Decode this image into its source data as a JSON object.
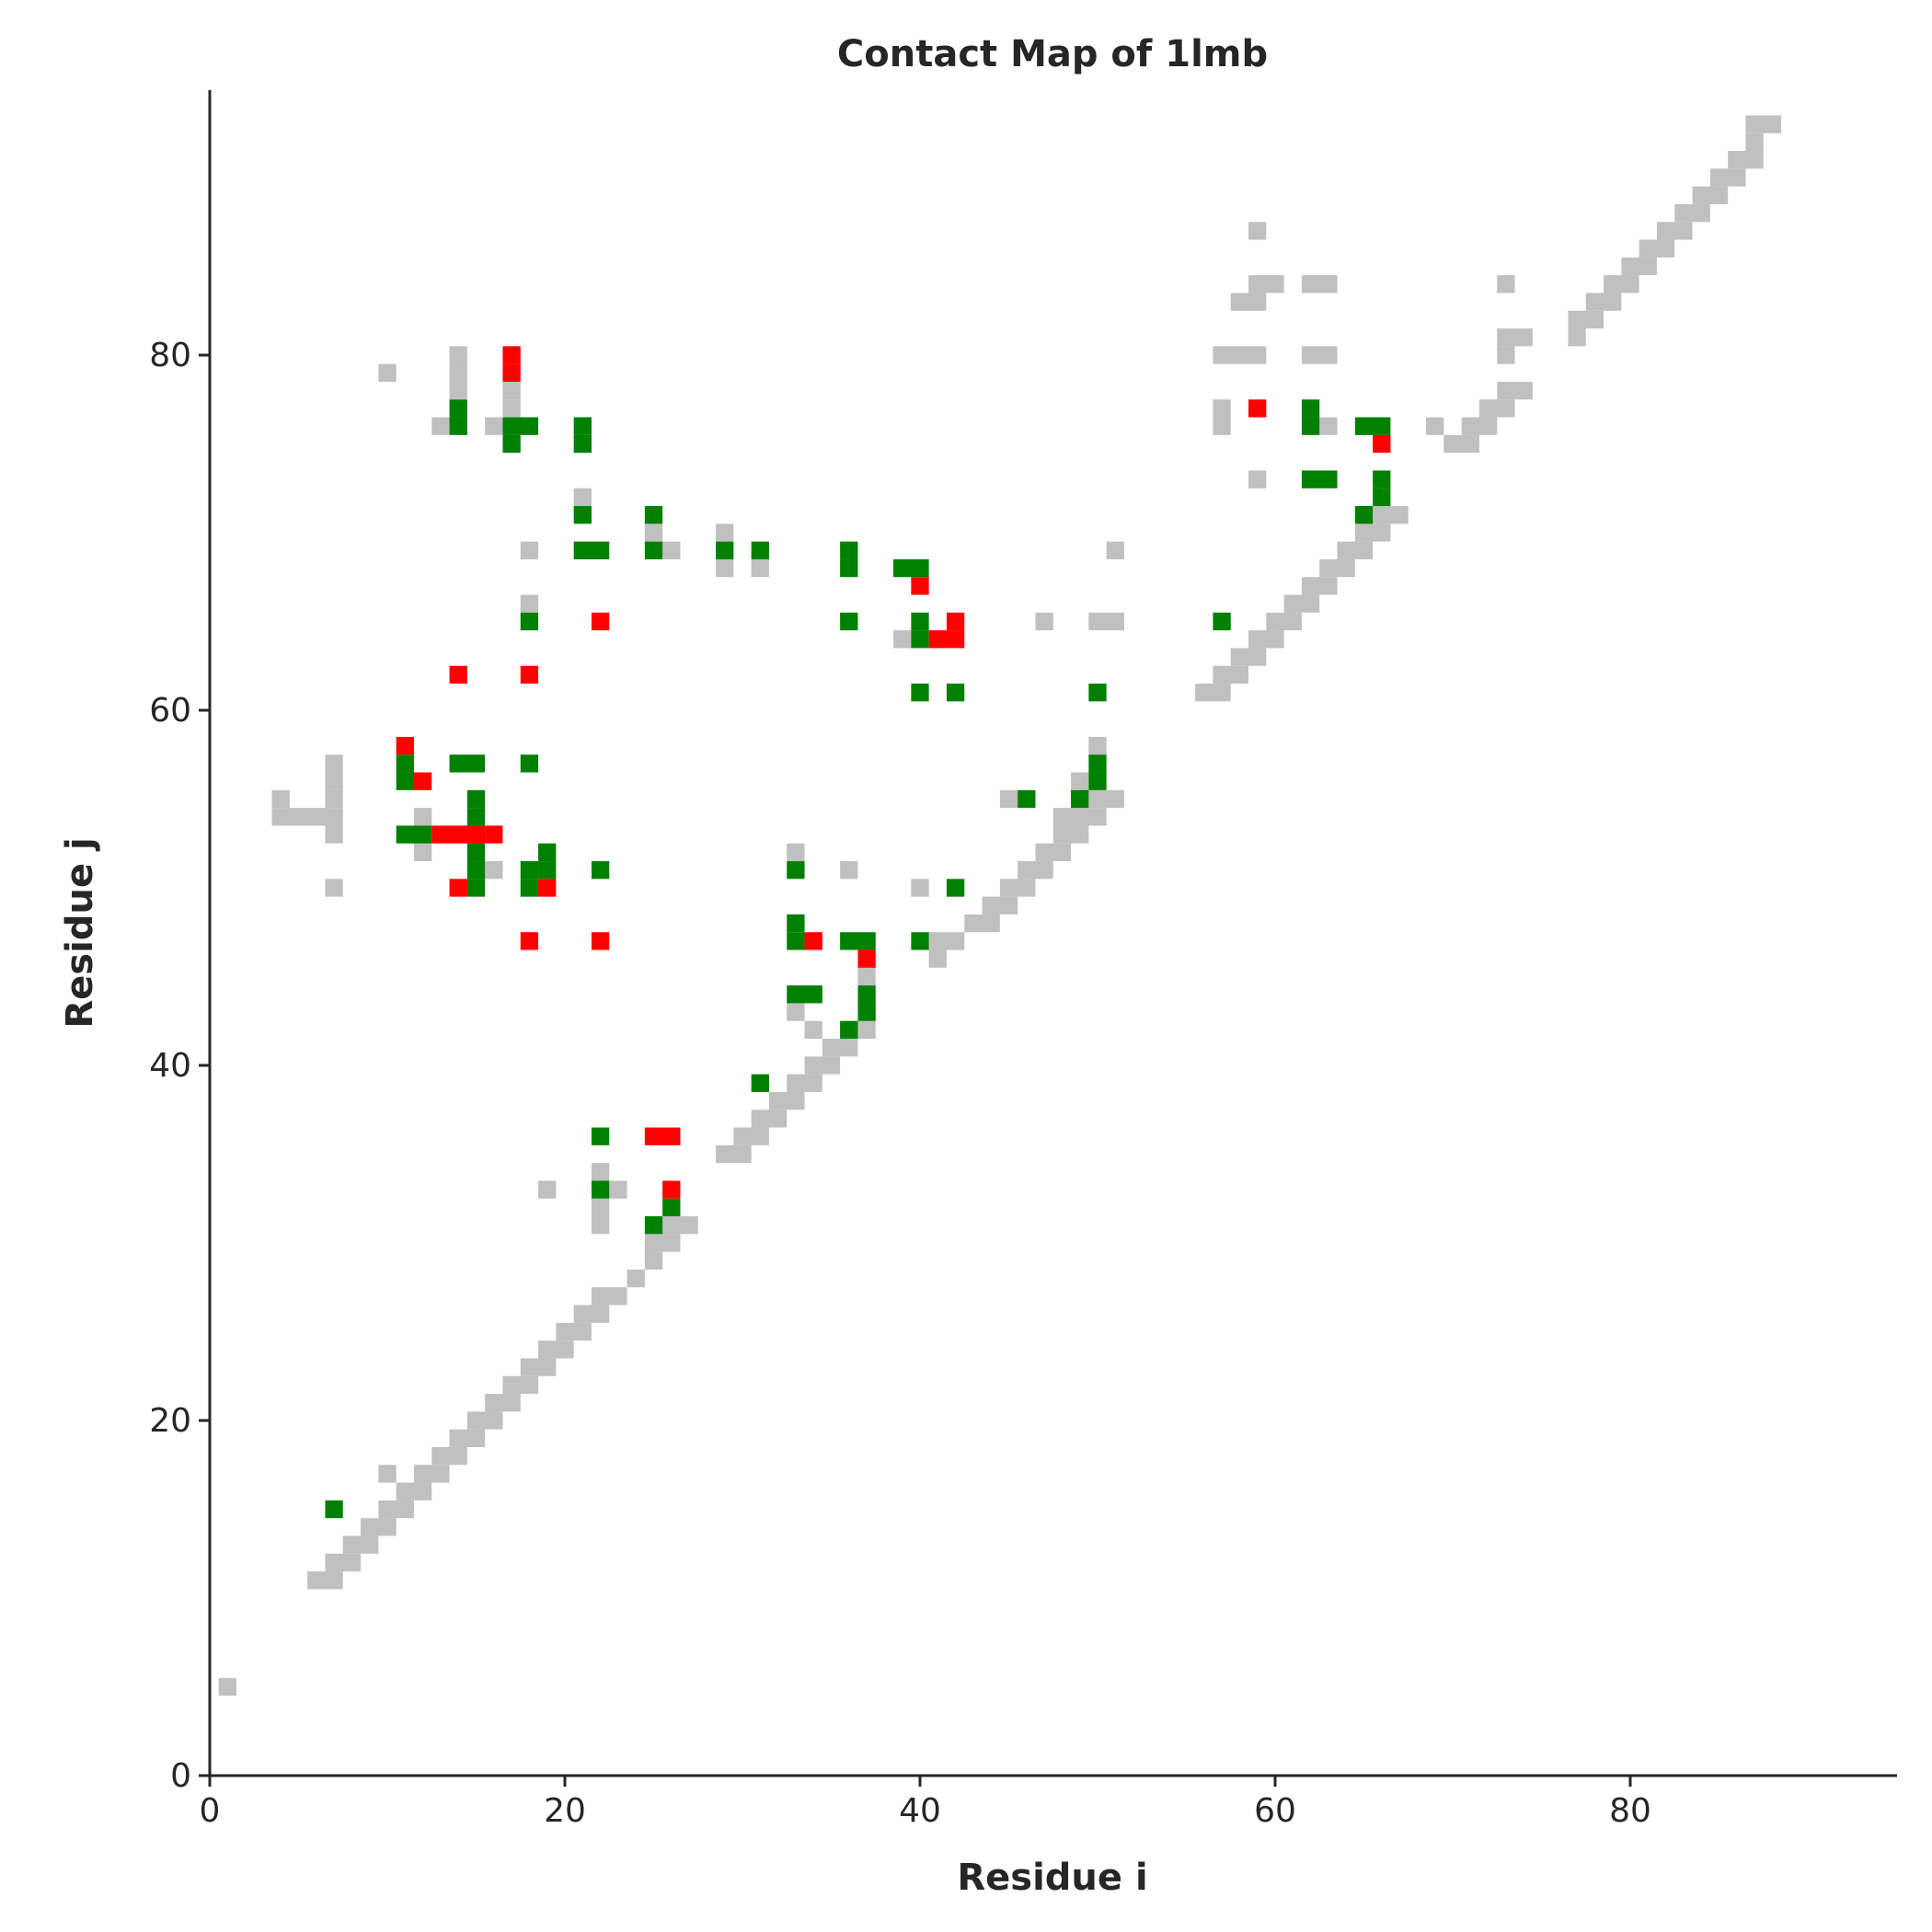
{
  "chart_data": {
    "type": "heatmap",
    "title": "Contact Map of 1lmb",
    "xlabel": "Residue i",
    "ylabel": "Residue j",
    "xlim": [
      0,
      95
    ],
    "ylim": [
      0,
      95
    ],
    "xticks": [
      "0",
      "20",
      "40",
      "60",
      "80"
    ],
    "yticks": [
      "0",
      "20",
      "40",
      "60",
      "80"
    ],
    "grid": false,
    "colors": {
      "gray": "#c0c0c0",
      "green": "#008000",
      "red": "#ff0000",
      "axis": "#262626"
    },
    "series": [
      {
        "color_key": "gray",
        "runs": [
          [
            1,
            5,
            1
          ],
          [
            6,
            11,
            2
          ],
          [
            7,
            12,
            2
          ],
          [
            8,
            13,
            2
          ],
          [
            9,
            14,
            2
          ],
          [
            10,
            15,
            2
          ],
          [
            10,
            17,
            1
          ],
          [
            11,
            16,
            2
          ],
          [
            12,
            17,
            2
          ],
          [
            13,
            18,
            2
          ],
          [
            14,
            19,
            2
          ],
          [
            15,
            20,
            2
          ],
          [
            16,
            21,
            2
          ],
          [
            17,
            22,
            2
          ],
          [
            18,
            23,
            2
          ],
          [
            19,
            24,
            2
          ],
          [
            20,
            25,
            2
          ],
          [
            21,
            26,
            2
          ],
          [
            22,
            27,
            2
          ],
          [
            24,
            28,
            1
          ],
          [
            25,
            29,
            1
          ],
          [
            25,
            30,
            2
          ],
          [
            26,
            31,
            2
          ],
          [
            22,
            31,
            1
          ],
          [
            22,
            32,
            1
          ],
          [
            22,
            34,
            1
          ],
          [
            23,
            33,
            1
          ],
          [
            19,
            33,
            1
          ],
          [
            29,
            35,
            2
          ],
          [
            30,
            36,
            2
          ],
          [
            31,
            37,
            2
          ],
          [
            32,
            38,
            2
          ],
          [
            33,
            39,
            2
          ],
          [
            34,
            40,
            2
          ],
          [
            35,
            41,
            2
          ],
          [
            36,
            42,
            2
          ],
          [
            37,
            43,
            1
          ],
          [
            37,
            45,
            1
          ],
          [
            33,
            43,
            1
          ],
          [
            34,
            42,
            1
          ],
          [
            41,
            46,
            1
          ],
          [
            41,
            47,
            2
          ],
          [
            43,
            48,
            2
          ],
          [
            44,
            49,
            2
          ],
          [
            45,
            50,
            2
          ],
          [
            46,
            51,
            2
          ],
          [
            47,
            52,
            2
          ],
          [
            48,
            53,
            2
          ],
          [
            48,
            54,
            3
          ],
          [
            49,
            56,
            1
          ],
          [
            50,
            55,
            2
          ],
          [
            50,
            58,
            1
          ],
          [
            45,
            55,
            1
          ],
          [
            56,
            61,
            2
          ],
          [
            57,
            62,
            2
          ],
          [
            58,
            63,
            2
          ],
          [
            59,
            64,
            2
          ],
          [
            60,
            65,
            2
          ],
          [
            61,
            66,
            2
          ],
          [
            62,
            67,
            2
          ],
          [
            63,
            68,
            2
          ],
          [
            64,
            69,
            2
          ],
          [
            65,
            70,
            2
          ],
          [
            66,
            71,
            2
          ],
          [
            69,
            76,
            1
          ],
          [
            70,
            75,
            2
          ],
          [
            71,
            76,
            2
          ],
          [
            72,
            77,
            2
          ],
          [
            73,
            78,
            2
          ],
          [
            73,
            80,
            1
          ],
          [
            73,
            81,
            2
          ],
          [
            73,
            84,
            1
          ],
          [
            77,
            81,
            1
          ],
          [
            77,
            82,
            2
          ],
          [
            78,
            83,
            2
          ],
          [
            79,
            84,
            2
          ],
          [
            80,
            85,
            2
          ],
          [
            81,
            86,
            2
          ],
          [
            82,
            87,
            2
          ],
          [
            83,
            88,
            2
          ],
          [
            84,
            89,
            2
          ],
          [
            85,
            90,
            2
          ],
          [
            86,
            91,
            2
          ],
          [
            87,
            92,
            1
          ],
          [
            87,
            93,
            2
          ],
          [
            57,
            80,
            3
          ],
          [
            57,
            76,
            1
          ],
          [
            57,
            77,
            1
          ],
          [
            59,
            73,
            1
          ],
          [
            58,
            83,
            2
          ],
          [
            59,
            84,
            2
          ],
          [
            59,
            87,
            1
          ],
          [
            62,
            84,
            2
          ],
          [
            62,
            80,
            2
          ],
          [
            63,
            76,
            1
          ],
          [
            4,
            55,
            1
          ],
          [
            4,
            54,
            4
          ],
          [
            7,
            53,
            1
          ],
          [
            7,
            55,
            1
          ],
          [
            7,
            56,
            1
          ],
          [
            7,
            57,
            1
          ],
          [
            7,
            50,
            1
          ],
          [
            12,
            52,
            1
          ],
          [
            12,
            54,
            1
          ],
          [
            16,
            51,
            1
          ],
          [
            10,
            79,
            1
          ],
          [
            13,
            76,
            1
          ],
          [
            16,
            76,
            1
          ],
          [
            14,
            78,
            1
          ],
          [
            14,
            79,
            1
          ],
          [
            14,
            80,
            1
          ],
          [
            17,
            77,
            1
          ],
          [
            17,
            78,
            1
          ],
          [
            18,
            66,
            1
          ],
          [
            18,
            69,
            1
          ],
          [
            21,
            72,
            1
          ],
          [
            25,
            70,
            1
          ],
          [
            26,
            69,
            1
          ],
          [
            29,
            68,
            1
          ],
          [
            29,
            70,
            1
          ],
          [
            31,
            68,
            1
          ],
          [
            39,
            64,
            1
          ],
          [
            47,
            65,
            1
          ],
          [
            50,
            65,
            2
          ],
          [
            51,
            69,
            1
          ],
          [
            33,
            52,
            1
          ],
          [
            36,
            51,
            1
          ],
          [
            40,
            50,
            1
          ]
        ]
      },
      {
        "color_key": "green",
        "runs": [
          [
            7,
            15,
            1
          ],
          [
            22,
            33,
            1
          ],
          [
            22,
            36,
            1
          ],
          [
            25,
            31,
            1
          ],
          [
            26,
            32,
            1
          ],
          [
            31,
            39,
            1
          ],
          [
            33,
            44,
            2
          ],
          [
            33,
            47,
            1
          ],
          [
            33,
            48,
            1
          ],
          [
            36,
            42,
            1
          ],
          [
            36,
            47,
            2
          ],
          [
            37,
            43,
            1
          ],
          [
            37,
            44,
            1
          ],
          [
            40,
            47,
            1
          ],
          [
            42,
            50,
            1
          ],
          [
            46,
            55,
            1
          ],
          [
            49,
            55,
            1
          ],
          [
            50,
            56,
            1
          ],
          [
            50,
            57,
            1
          ],
          [
            40,
            61,
            1
          ],
          [
            42,
            61,
            1
          ],
          [
            50,
            61,
            1
          ],
          [
            57,
            65,
            1
          ],
          [
            11,
            56,
            1
          ],
          [
            11,
            57,
            1
          ],
          [
            11,
            53,
            2
          ],
          [
            14,
            57,
            2
          ],
          [
            15,
            50,
            1
          ],
          [
            15,
            51,
            1
          ],
          [
            15,
            52,
            1
          ],
          [
            15,
            53,
            1
          ],
          [
            15,
            54,
            1
          ],
          [
            15,
            55,
            1
          ],
          [
            18,
            50,
            1
          ],
          [
            18,
            51,
            1
          ],
          [
            18,
            57,
            1
          ],
          [
            19,
            51,
            1
          ],
          [
            19,
            52,
            1
          ],
          [
            22,
            51,
            1
          ],
          [
            33,
            51,
            1
          ],
          [
            18,
            65,
            1
          ],
          [
            21,
            69,
            2
          ],
          [
            21,
            71,
            1
          ],
          [
            21,
            75,
            1
          ],
          [
            21,
            76,
            1
          ],
          [
            25,
            69,
            1
          ],
          [
            25,
            71,
            1
          ],
          [
            29,
            69,
            1
          ],
          [
            31,
            69,
            1
          ],
          [
            36,
            65,
            1
          ],
          [
            36,
            68,
            1
          ],
          [
            36,
            69,
            1
          ],
          [
            39,
            68,
            2
          ],
          [
            40,
            64,
            1
          ],
          [
            40,
            65,
            1
          ],
          [
            14,
            76,
            1
          ],
          [
            14,
            77,
            1
          ],
          [
            17,
            75,
            1
          ],
          [
            17,
            76,
            2
          ],
          [
            62,
            73,
            2
          ],
          [
            62,
            76,
            1
          ],
          [
            62,
            77,
            1
          ],
          [
            65,
            71,
            1
          ],
          [
            65,
            76,
            2
          ],
          [
            66,
            72,
            1
          ],
          [
            66,
            73,
            1
          ]
        ]
      },
      {
        "color_key": "red",
        "runs": [
          [
            25,
            36,
            2
          ],
          [
            26,
            33,
            1
          ],
          [
            34,
            47,
            1
          ],
          [
            37,
            46,
            1
          ],
          [
            18,
            47,
            1
          ],
          [
            22,
            47,
            1
          ],
          [
            11,
            58,
            1
          ],
          [
            12,
            56,
            1
          ],
          [
            13,
            53,
            3
          ],
          [
            16,
            53,
            1
          ],
          [
            14,
            50,
            1
          ],
          [
            19,
            50,
            1
          ],
          [
            14,
            62,
            1
          ],
          [
            18,
            62,
            1
          ],
          [
            22,
            65,
            1
          ],
          [
            40,
            67,
            1
          ],
          [
            41,
            64,
            2
          ],
          [
            42,
            65,
            1
          ],
          [
            17,
            79,
            1
          ],
          [
            17,
            80,
            1
          ],
          [
            59,
            77,
            1
          ],
          [
            66,
            75,
            1
          ]
        ]
      }
    ]
  }
}
